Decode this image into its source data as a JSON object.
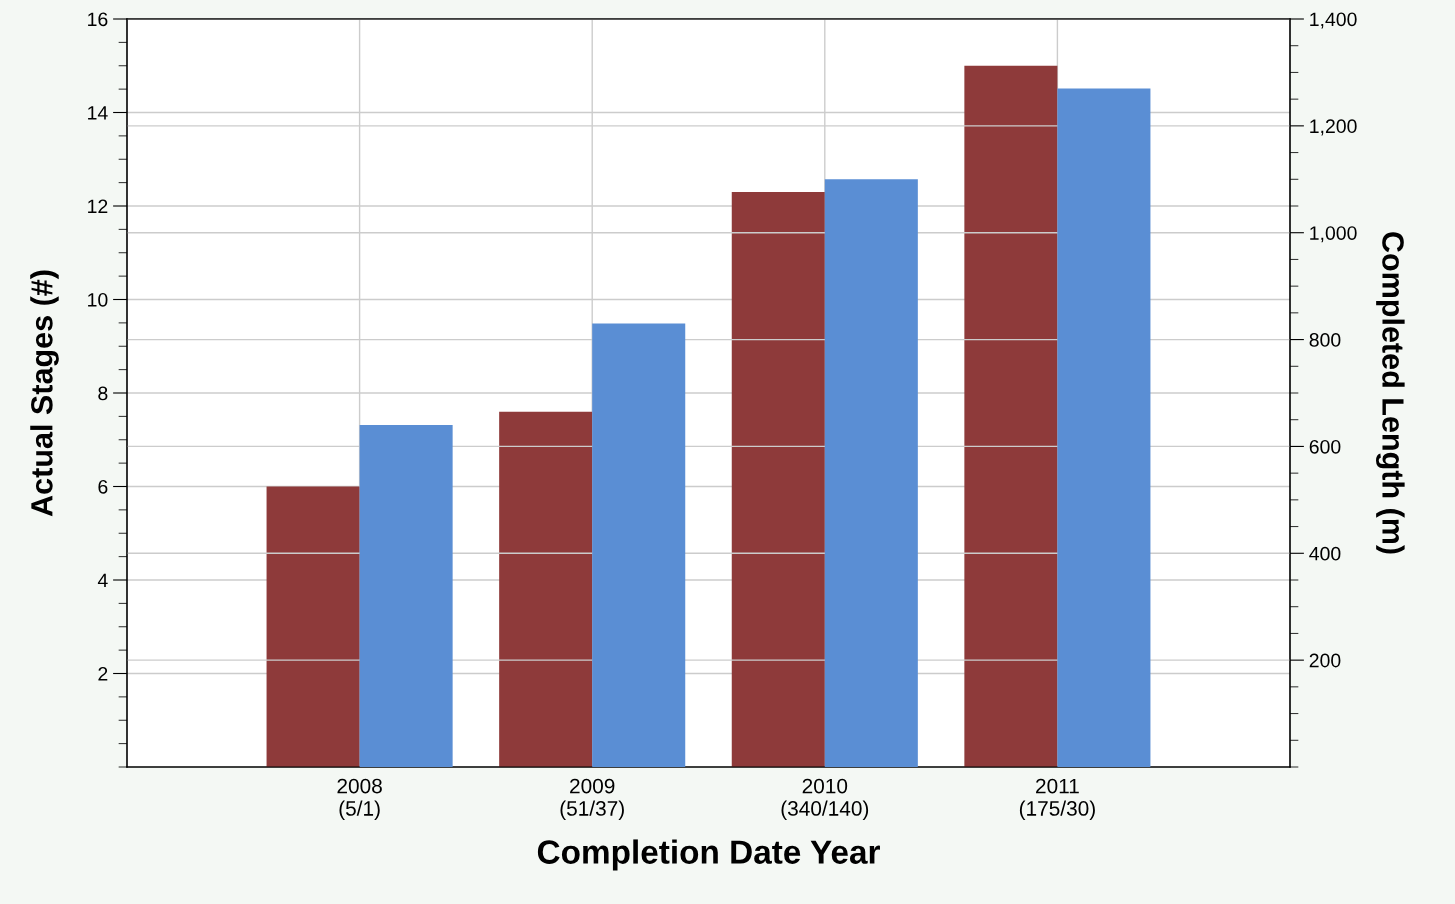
{
  "chart_data": {
    "type": "bar",
    "xlabel": "Completion Date Year",
    "ylabel": "Actual Stages (#)",
    "y2label": "Completed Length (m)",
    "categories": [
      "2008\n(5/1)",
      "2009\n(51/37)",
      "2010\n(340/140)",
      "2011\n(175/30)"
    ],
    "series": [
      {
        "color": "#8e3a3a",
        "values": [
          6,
          7.6,
          12.3,
          15
        ]
      },
      {
        "color": "#5a8ed4",
        "values": [
          640,
          830,
          1100,
          1270
        ],
        "axis": "y2"
      }
    ],
    "ylim": [
      0,
      16
    ],
    "yticks": [
      2,
      4,
      6,
      8,
      10,
      12,
      14,
      16
    ],
    "y2lim": [
      0,
      1400
    ],
    "y2ticks": [
      {
        "value": 200,
        "label": "200"
      },
      {
        "value": 400,
        "label": "400"
      },
      {
        "value": 600,
        "label": "600"
      },
      {
        "value": 800,
        "label": "800"
      },
      {
        "value": 1000,
        "label": "1,000"
      },
      {
        "value": 1200,
        "label": "1,200"
      },
      {
        "value": 1400,
        "label": "1,400"
      }
    ],
    "grid": true,
    "legend": false
  }
}
